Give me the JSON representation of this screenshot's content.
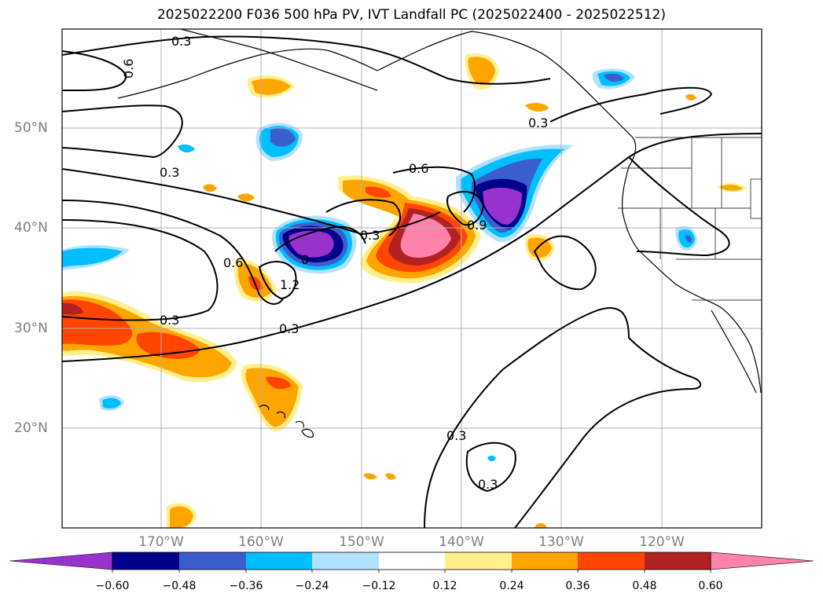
{
  "title": "2025022200 F036 500 hPa PV, IVT Landfall PC (2025022400 - 2025022512)",
  "map": {
    "lat_labels": [
      "50°N",
      "40°N",
      "30°N",
      "20°N"
    ],
    "lon_labels": [
      "170°W",
      "160°W",
      "150°W",
      "140°W",
      "130°W",
      "120°W"
    ],
    "contour_labels": [
      "0.3",
      "0.6",
      "0.3",
      "0.3",
      "0.3",
      "0.6",
      "0.3",
      "0.9",
      "0",
      "1.2",
      "0.6",
      "0.3",
      "0.3",
      "0.3"
    ]
  },
  "colorbar": {
    "ticks": [
      "−0.60",
      "−0.48",
      "−0.36",
      "−0.24",
      "−0.12",
      "0.12",
      "0.24",
      "0.36",
      "0.48",
      "0.60"
    ],
    "colors": [
      "#9932cc",
      "#00008b",
      "#3a5fcd",
      "#00bfff",
      "#b0e2ff",
      "#ffffff",
      "#fff08c",
      "#ffa500",
      "#ff4500",
      "#b22222",
      "#ff82ab"
    ]
  }
}
